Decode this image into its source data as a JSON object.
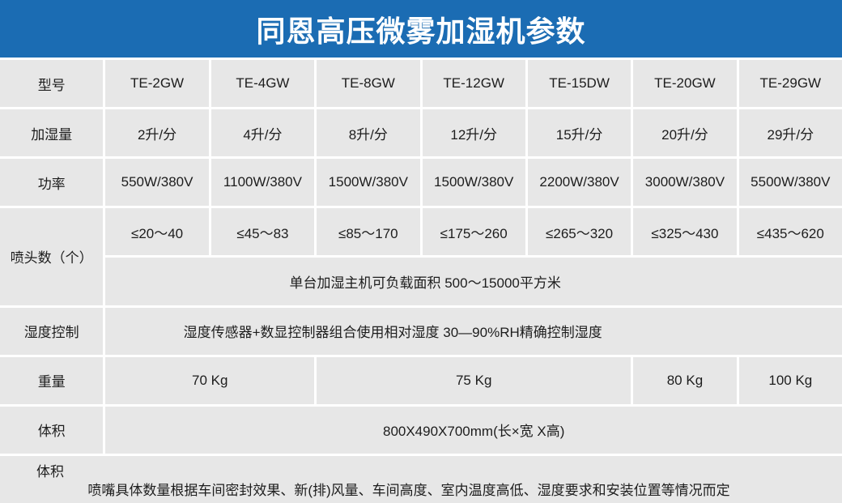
{
  "title": "同恩高压微雾加湿机参数",
  "colors": {
    "header_bg": "#1b6cb3",
    "cell_bg": "#e7e7e7",
    "gap": "#ffffff",
    "text": "#1d1d1d"
  },
  "table": {
    "model_row": {
      "label": "型号",
      "values": [
        "TE-2GW",
        "TE-4GW",
        "TE-8GW",
        "TE-12GW",
        "TE-15DW",
        "TE-20GW",
        "TE-29GW"
      ]
    },
    "capacity_row": {
      "label": "加湿量",
      "values": [
        "2升/分",
        "4升/分",
        "8升/分",
        "12升/分",
        "15升/分",
        "20升/分",
        "29升/分"
      ]
    },
    "power_row": {
      "label": "功率",
      "values": [
        "550W/380V",
        "1100W/380V",
        "1500W/380V",
        "1500W/380V",
        "2200W/380V",
        "3000W/380V",
        "5500W/380V"
      ]
    },
    "nozzle_row": {
      "label": "喷头数（个）",
      "values": [
        "≤20～40",
        "≤45～83",
        "≤85～170",
        "≤175～260",
        "≤265～320",
        "≤325～430",
        "≤435～620"
      ]
    },
    "coverage_row": {
      "value": "单台加湿主机可负载面积 500～15000平方米"
    },
    "humidity_row": {
      "label": "湿度控制",
      "value": "湿度传感器+数显控制器组合使用相对湿度 30—90%RH精确控制湿度"
    },
    "weight_row": {
      "label": "重量",
      "values": [
        "70 Kg",
        "75 Kg",
        "80 Kg",
        "100 Kg"
      ]
    },
    "volume_row": {
      "label": "体积",
      "value": "800X490X700mm(长×宽 X高)"
    },
    "note_row": {
      "label": "体积",
      "value": "喷嘴具体数量根据车间密封效果、新(排)风量、车间高度、室内温度高低、湿度要求和安装位置等情况而定"
    }
  }
}
